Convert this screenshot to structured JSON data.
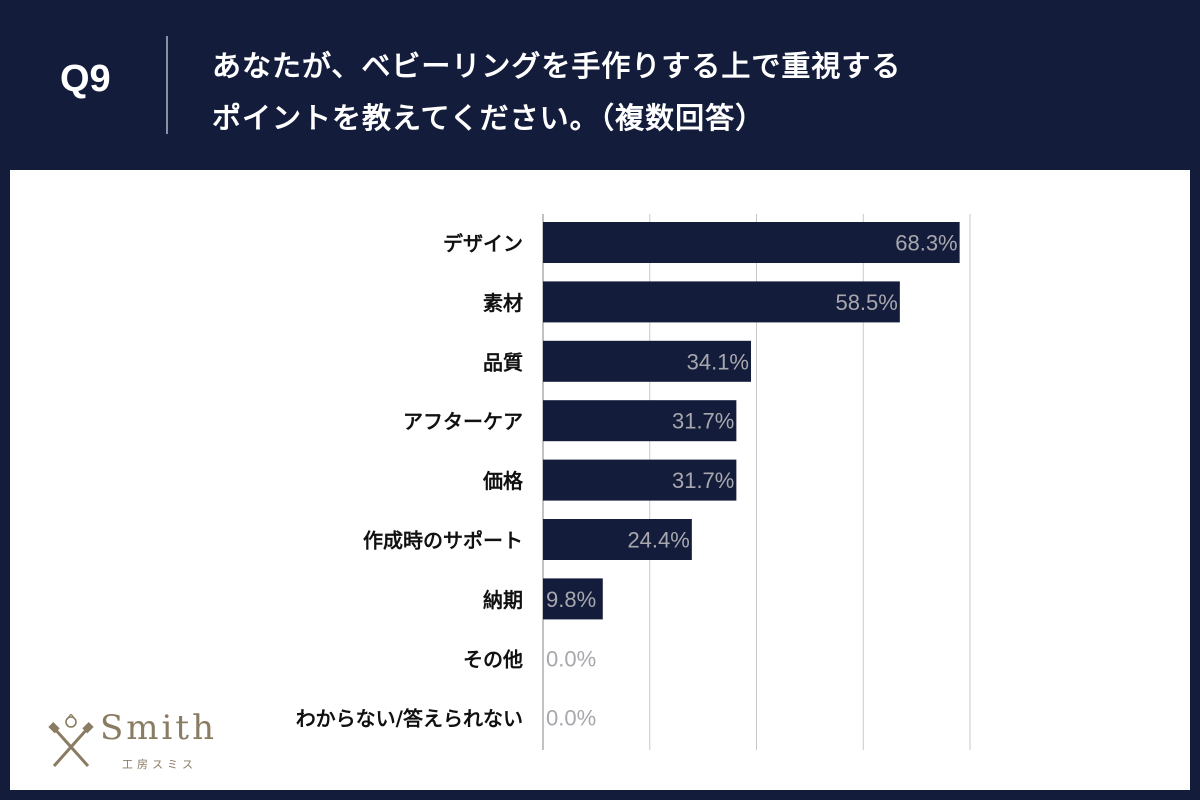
{
  "question": {
    "number": "Q9",
    "line1": "あなたが、ベビーリングを手作りする上で重視する",
    "line2": "ポイントを教えてください。（複数回答）"
  },
  "colors": {
    "header_bg": "#141c3b",
    "bar": "#141c3b",
    "value_label": "#a7a7ad",
    "category_label": "#111111",
    "grid": "#c9c9c9"
  },
  "chart_data": {
    "type": "bar",
    "orientation": "horizontal",
    "title": "あなたが、ベビーリングを手作りする上で重視するポイントを教えてください。（複数回答）",
    "categories": [
      "デザイン",
      "素材",
      "品質",
      "アフターケア",
      "価格",
      "作成時のサポート",
      "納期",
      "その他",
      "わからない/答えられない"
    ],
    "values": [
      68.3,
      58.5,
      34.1,
      31.7,
      31.7,
      24.4,
      9.8,
      0.0,
      0.0
    ],
    "value_labels": [
      "68.3%",
      "58.5%",
      "34.1%",
      "31.7%",
      "31.7%",
      "24.4%",
      "9.8%",
      "0.0%",
      "0.0%"
    ],
    "unit": "%",
    "xlim": [
      0,
      70
    ],
    "grid_step": 17.5,
    "xlabel": "",
    "ylabel": "",
    "grid": true
  },
  "logo": {
    "word": "Smith",
    "sub": "工房スミス",
    "icon": "crossed-tools-ring-icon"
  }
}
